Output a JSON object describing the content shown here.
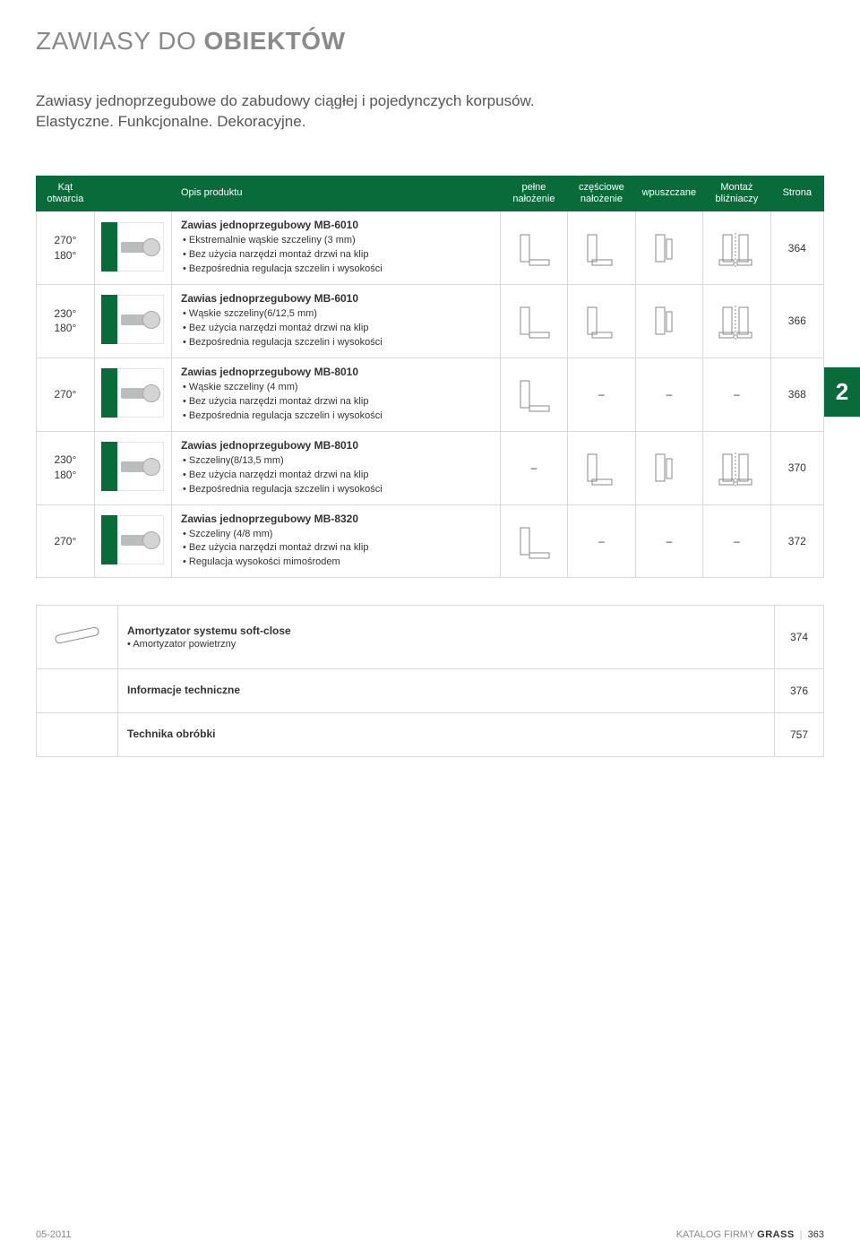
{
  "header": {
    "title_light": "ZAWIASY DO ",
    "title_bold": "OBIEKTÓW",
    "subtitle": "Zawiasy jednoprzegubowe do zabudowy ciągłej i pojedynczych korpusów. Elastyczne. Funkcjonalne. Dekoracyjne."
  },
  "green": "#0a6b3a",
  "columns": {
    "c1": "Kąt otwarcia",
    "c2": "",
    "c3": "Opis produktu",
    "c4": "pełne nałożenie",
    "c5": "częściowe nałożenie",
    "c6": "wpuszczane",
    "c7": "Montaż bliźniaczy",
    "c8": "Strona"
  },
  "rows": [
    {
      "angles": [
        "270°",
        "180°"
      ],
      "title": "Zawias jednoprzegubowy MB-6010",
      "bullets": [
        "Ekstremalnie wąskie szczeliny (3 mm)",
        "Bez użycia narzędzi montaż drzwi na klip",
        "Bezpośrednia regulacja szczelin i wysokości"
      ],
      "icons": [
        "full",
        "half",
        "inset",
        "-",
        "twin"
      ],
      "page": "364"
    },
    {
      "angles": [
        "230°",
        "180°"
      ],
      "title": "Zawias jednoprzegubowy MB-6010",
      "bullets": [
        "Wąskie szczeliny(6/12,5 mm)",
        "Bez użycia narzędzi montaż drzwi na klip",
        "Bezpośrednia regulacja szczelin i wysokości"
      ],
      "icons": [
        "full",
        "half",
        "inset",
        "-",
        "twin"
      ],
      "page": "366"
    },
    {
      "angles": [
        "270°"
      ],
      "title": "Zawias jednoprzegubowy MB-8010",
      "bullets": [
        "Wąskie szczeliny (4 mm)",
        "Bez użycia narzędzi montaż drzwi na klip",
        "Bezpośrednia regulacja szczelin i wysokości"
      ],
      "icons": [
        "full",
        "-",
        "-",
        "-",
        "-"
      ],
      "page": "368"
    },
    {
      "angles": [
        "230°",
        "180°"
      ],
      "title": "Zawias jednoprzegubowy MB-8010",
      "bullets": [
        "Szczeliny(8/13,5 mm)",
        "Bez użycia narzędzi montaż drzwi na klip",
        "Bezpośrednia regulacja szczelin i wysokości"
      ],
      "icons": [
        "-",
        "half",
        "inset",
        "-",
        "twin"
      ],
      "page": "370"
    },
    {
      "angles": [
        "270°"
      ],
      "title": "Zawias jednoprzegubowy MB-8320",
      "bullets": [
        "Szczeliny (4/8 mm)",
        "Bez użycia narzędzi montaż drzwi na klip",
        "Regulacja wysokości mimośrodem"
      ],
      "icons": [
        "full",
        "-",
        "-",
        "-",
        "-"
      ],
      "page": "372"
    }
  ],
  "info_rows": [
    {
      "title": "Amortyzator systemu soft-close",
      "bullets": [
        "Amortyzator powietrzny"
      ],
      "page": "374",
      "thumb": "damper"
    },
    {
      "title": "Informacje techniczne",
      "bullets": [],
      "page": "376",
      "thumb": ""
    },
    {
      "title": "Technika obróbki",
      "bullets": [],
      "page": "757",
      "thumb": ""
    }
  ],
  "side_tab": "2",
  "footer": {
    "left": "05-2011",
    "right_text": "KATALOG FIRMY ",
    "right_brand": "GRASS",
    "right_page": "363"
  }
}
